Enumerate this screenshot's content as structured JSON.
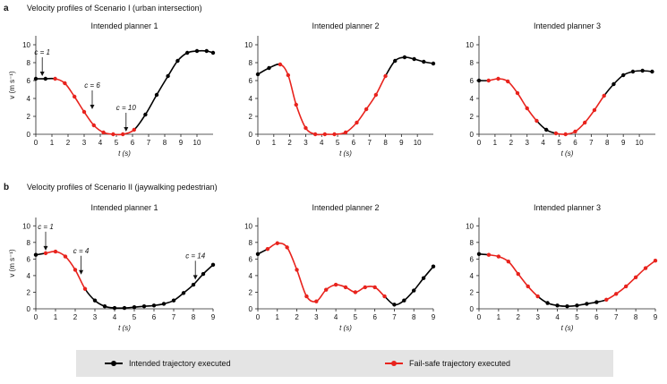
{
  "panels": [
    {
      "letter": "a",
      "title": "Velocity profiles of Scenario I (urban intersection)"
    },
    {
      "letter": "b",
      "title": "Velocity profiles of Scenario II (jaywalking pedestrian)"
    }
  ],
  "legend": {
    "intended_label": "Intended trajectory executed",
    "intended_color": "#000000",
    "failsafe_label": "Fail-safe trajectory executed",
    "failsafe_color": "#e8231d"
  },
  "chart_data": [
    {
      "type": "line",
      "title": "Intended planner 1",
      "xlabel": "t (s)",
      "ylabel": "v (m s⁻¹)",
      "xlim": [
        0,
        11
      ],
      "ylim": [
        0,
        11
      ],
      "xticks": [
        0,
        1,
        2,
        3,
        4,
        5,
        6,
        7,
        8,
        9,
        10
      ],
      "yticks": [
        0,
        2,
        4,
        6,
        8,
        10
      ],
      "points": [
        [
          0,
          6.2
        ],
        [
          0.6,
          6.2
        ],
        [
          1.2,
          6.2
        ],
        [
          1.8,
          5.7
        ],
        [
          2.4,
          4.2
        ],
        [
          3.0,
          2.5
        ],
        [
          3.6,
          1.0
        ],
        [
          4.2,
          0.2
        ],
        [
          4.8,
          0.0
        ],
        [
          5.4,
          0.0
        ],
        [
          6.1,
          0.5
        ],
        [
          6.8,
          2.2
        ],
        [
          7.5,
          4.4
        ],
        [
          8.2,
          6.5
        ],
        [
          8.8,
          8.2
        ],
        [
          9.4,
          9.1
        ],
        [
          10.0,
          9.3
        ],
        [
          10.6,
          9.3
        ],
        [
          11.0,
          9.1
        ]
      ],
      "failsafe": [
        [
          1.2,
          3
        ],
        [
          3,
          10
        ]
      ],
      "annotations": [
        {
          "text": "c = 1",
          "x": 0.4,
          "y": 6.2
        },
        {
          "text": "c = 6",
          "x": 3.5,
          "y": 2.5
        },
        {
          "text": "c = 10",
          "x": 5.6,
          "y": 0.0
        }
      ]
    },
    {
      "type": "line",
      "title": "Intended planner 2",
      "xlabel": "t (s)",
      "ylabel": "",
      "xlim": [
        0,
        11
      ],
      "ylim": [
        0,
        11
      ],
      "xticks": [
        0,
        1,
        2,
        3,
        4,
        5,
        6,
        7,
        8,
        9,
        10
      ],
      "yticks": [
        0,
        2,
        4,
        6,
        8,
        10
      ],
      "points": [
        [
          0,
          6.7
        ],
        [
          0.7,
          7.4
        ],
        [
          1.4,
          7.8
        ],
        [
          1.9,
          6.6
        ],
        [
          2.4,
          3.3
        ],
        [
          3.0,
          0.7
        ],
        [
          3.6,
          0.0
        ],
        [
          4.2,
          0.0
        ],
        [
          4.8,
          0.0
        ],
        [
          5.5,
          0.2
        ],
        [
          6.2,
          1.3
        ],
        [
          6.8,
          2.8
        ],
        [
          7.4,
          4.4
        ],
        [
          8.0,
          6.5
        ],
        [
          8.6,
          8.2
        ],
        [
          9.2,
          8.6
        ],
        [
          9.8,
          8.4
        ],
        [
          10.4,
          8.1
        ],
        [
          11.0,
          7.9
        ]
      ],
      "failsafe": [
        [
          2,
          13
        ]
      ],
      "annotations": []
    },
    {
      "type": "line",
      "title": "Intended planner 3",
      "xlabel": "t (s)",
      "ylabel": "",
      "xlim": [
        0,
        11
      ],
      "ylim": [
        0,
        11
      ],
      "xticks": [
        0,
        1,
        2,
        3,
        4,
        5,
        6,
        7,
        8,
        9,
        10
      ],
      "yticks": [
        0,
        2,
        4,
        6,
        8,
        10
      ],
      "points": [
        [
          0,
          6.0
        ],
        [
          0.6,
          6.0
        ],
        [
          1.2,
          6.2
        ],
        [
          1.8,
          5.9
        ],
        [
          2.4,
          4.6
        ],
        [
          3.0,
          2.9
        ],
        [
          3.6,
          1.5
        ],
        [
          4.2,
          0.5
        ],
        [
          4.8,
          0.1
        ],
        [
          5.4,
          0.0
        ],
        [
          6.0,
          0.3
        ],
        [
          6.6,
          1.3
        ],
        [
          7.2,
          2.7
        ],
        [
          7.8,
          4.3
        ],
        [
          8.4,
          5.6
        ],
        [
          9.0,
          6.6
        ],
        [
          9.6,
          7.0
        ],
        [
          10.2,
          7.1
        ],
        [
          10.8,
          7.0
        ]
      ],
      "failsafe": [
        [
          1,
          6
        ],
        [
          8,
          13
        ]
      ],
      "annotations": []
    },
    {
      "type": "line",
      "title": "Intended planner 1",
      "xlabel": "t (s)",
      "ylabel": "v (m s⁻¹)",
      "xlim": [
        0,
        9
      ],
      "ylim": [
        0,
        11
      ],
      "xticks": [
        0,
        1,
        2,
        3,
        4,
        5,
        6,
        7,
        8,
        9
      ],
      "yticks": [
        0,
        2,
        4,
        6,
        8,
        10
      ],
      "points": [
        [
          0,
          6.5
        ],
        [
          0.5,
          6.7
        ],
        [
          1.0,
          6.9
        ],
        [
          1.5,
          6.3
        ],
        [
          2.0,
          4.7
        ],
        [
          2.5,
          2.4
        ],
        [
          3.0,
          1.0
        ],
        [
          3.5,
          0.3
        ],
        [
          4.0,
          0.1
        ],
        [
          4.5,
          0.1
        ],
        [
          5.0,
          0.2
        ],
        [
          5.5,
          0.3
        ],
        [
          6.0,
          0.4
        ],
        [
          6.5,
          0.6
        ],
        [
          7.0,
          1.0
        ],
        [
          7.5,
          1.9
        ],
        [
          8.0,
          2.9
        ],
        [
          8.5,
          4.2
        ],
        [
          9.0,
          5.3
        ]
      ],
      "failsafe": [
        [
          1,
          5
        ]
      ],
      "annotations": [
        {
          "text": "c = 1",
          "x": 0.5,
          "y": 6.7
        },
        {
          "text": "c = 4",
          "x": 2.3,
          "y": 3.8
        },
        {
          "text": "c = 14",
          "x": 8.1,
          "y": 3.2
        }
      ]
    },
    {
      "type": "line",
      "title": "Intended planner 2",
      "xlabel": "t (s)",
      "ylabel": "",
      "xlim": [
        0,
        9
      ],
      "ylim": [
        0,
        11
      ],
      "xticks": [
        0,
        1,
        2,
        3,
        4,
        5,
        6,
        7,
        8,
        9
      ],
      "yticks": [
        0,
        2,
        4,
        6,
        8,
        10
      ],
      "points": [
        [
          0,
          6.6
        ],
        [
          0.5,
          7.2
        ],
        [
          1.0,
          7.9
        ],
        [
          1.5,
          7.4
        ],
        [
          2.0,
          4.7
        ],
        [
          2.5,
          1.5
        ],
        [
          3.0,
          0.9
        ],
        [
          3.5,
          2.3
        ],
        [
          4.0,
          2.9
        ],
        [
          4.5,
          2.6
        ],
        [
          5.0,
          2.0
        ],
        [
          5.5,
          2.6
        ],
        [
          6.0,
          2.6
        ],
        [
          6.5,
          1.5
        ],
        [
          7.0,
          0.5
        ],
        [
          7.5,
          1.0
        ],
        [
          8.0,
          2.2
        ],
        [
          8.5,
          3.7
        ],
        [
          9.0,
          5.1
        ]
      ],
      "failsafe": [
        [
          1,
          5
        ],
        [
          6,
          13
        ]
      ],
      "annotations": []
    },
    {
      "type": "line",
      "title": "Intended planner 3",
      "xlabel": "t (s)",
      "ylabel": "",
      "xlim": [
        0,
        9
      ],
      "ylim": [
        0,
        11
      ],
      "xticks": [
        0,
        1,
        2,
        3,
        4,
        5,
        6,
        7,
        8,
        9
      ],
      "yticks": [
        0,
        2,
        4,
        6,
        8,
        10
      ],
      "points": [
        [
          0,
          6.6
        ],
        [
          0.5,
          6.5
        ],
        [
          1.0,
          6.3
        ],
        [
          1.5,
          5.7
        ],
        [
          2.0,
          4.2
        ],
        [
          2.5,
          2.7
        ],
        [
          3.0,
          1.5
        ],
        [
          3.5,
          0.7
        ],
        [
          4.0,
          0.4
        ],
        [
          4.5,
          0.3
        ],
        [
          5.0,
          0.4
        ],
        [
          5.5,
          0.6
        ],
        [
          6.0,
          0.8
        ],
        [
          6.5,
          1.1
        ],
        [
          7.0,
          1.8
        ],
        [
          7.5,
          2.7
        ],
        [
          8.0,
          3.8
        ],
        [
          8.5,
          4.9
        ],
        [
          9.0,
          5.8
        ]
      ],
      "failsafe": [
        [
          1,
          6
        ],
        [
          13,
          18
        ]
      ],
      "annotations": []
    }
  ]
}
